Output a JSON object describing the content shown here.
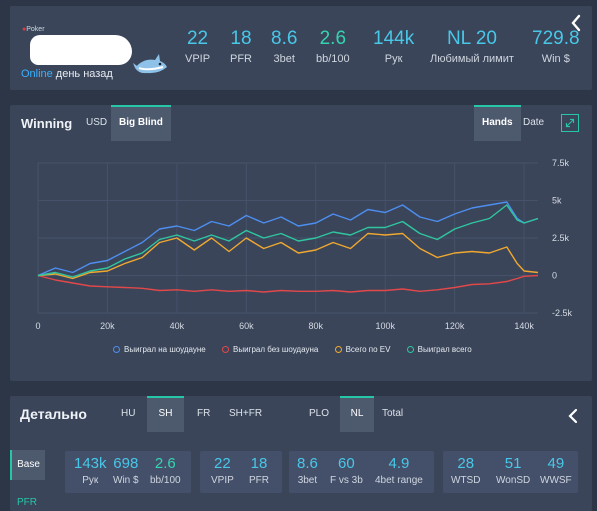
{
  "profile": {
    "logo_text": "Poker",
    "status_online": "Online",
    "status_ago": "день назад",
    "stats": [
      {
        "value": "22",
        "label": "VPIP"
      },
      {
        "value": "18",
        "label": "PFR"
      },
      {
        "value": "8.6",
        "label": "3bet"
      },
      {
        "value": "2.6",
        "label": "bb/100"
      },
      {
        "value": "144k",
        "label": "Рук"
      },
      {
        "value": "NL 20",
        "label": "Любимый лимит"
      },
      {
        "value": "729.8",
        "label": "Win $"
      }
    ]
  },
  "winning": {
    "title": "Winning",
    "tabs": [
      "USD",
      "Big Blind"
    ],
    "active_tab": "Big Blind",
    "modes": [
      "Hands",
      "Date"
    ],
    "active_mode": "Hands"
  },
  "chart_data": {
    "type": "line",
    "xlabel": "",
    "ylabel": "",
    "xlim": [
      0,
      144000
    ],
    "ylim": [
      -2500,
      7500
    ],
    "x_ticks": [
      "0",
      "20k",
      "40k",
      "60k",
      "80k",
      "100k",
      "120k",
      "140k"
    ],
    "y_ticks": [
      "7.5k",
      "5k",
      "2.5k",
      "0",
      "-2.5k"
    ],
    "grid": true,
    "legend_position": "bottom",
    "x": [
      0,
      5000,
      10000,
      15000,
      20000,
      25000,
      30000,
      35000,
      40000,
      45000,
      50000,
      55000,
      60000,
      65000,
      70000,
      75000,
      80000,
      85000,
      90000,
      95000,
      100000,
      105000,
      110000,
      115000,
      120000,
      125000,
      130000,
      135000,
      138000,
      140000,
      144000
    ],
    "series": [
      {
        "name": "Выиграл на шоудауне",
        "color": "#4d8ef0",
        "values": [
          0,
          500,
          200,
          800,
          1000,
          1600,
          2200,
          3100,
          3300,
          3000,
          3600,
          3300,
          4000,
          3500,
          3900,
          3300,
          3500,
          4100,
          3700,
          4400,
          4200,
          4700,
          3900,
          3600,
          4100,
          4500,
          4700,
          4900,
          3800,
          3500,
          3800
        ]
      },
      {
        "name": "Выиграл без шоудауна",
        "color": "#e2484a",
        "values": [
          0,
          -300,
          -500,
          -700,
          -750,
          -800,
          -850,
          -1000,
          -950,
          -1050,
          -950,
          -1050,
          -1000,
          -1100,
          -1000,
          -1050,
          -1050,
          -1000,
          -1100,
          -1000,
          -1000,
          -900,
          -1050,
          -950,
          -800,
          -600,
          -550,
          -400,
          -200,
          -50,
          0
        ]
      },
      {
        "name": "Всего по EV",
        "color": "#f0a830",
        "values": [
          0,
          100,
          -200,
          200,
          300,
          800,
          1200,
          2200,
          2500,
          1700,
          2500,
          1600,
          2500,
          1800,
          2200,
          1500,
          1700,
          2200,
          1800,
          2800,
          2700,
          2800,
          1800,
          1200,
          1500,
          1600,
          1500,
          1900,
          800,
          300,
          200
        ]
      },
      {
        "name": "Выиграл всего",
        "color": "#2fc6a0",
        "values": [
          0,
          200,
          -100,
          300,
          500,
          1100,
          1500,
          2400,
          2700,
          2300,
          2700,
          2300,
          3000,
          2500,
          2800,
          2300,
          2500,
          2900,
          2700,
          3200,
          3200,
          3600,
          2800,
          2400,
          3100,
          3500,
          3800,
          4700,
          3700,
          3500,
          3800
        ]
      }
    ]
  },
  "detail": {
    "title": "Детально",
    "tabs_a": [
      "HU",
      "SH",
      "FR",
      "SH+FR"
    ],
    "active_a": "SH",
    "tabs_b": [
      "PLO",
      "NL",
      "Total"
    ],
    "active_b": "NL",
    "base_label": "Base",
    "pfr_label": "PFR",
    "groups": [
      {
        "stats": [
          {
            "value": "143k",
            "label": "Рук"
          },
          {
            "value": "698",
            "label": "Win $"
          },
          {
            "value": "2.6",
            "label": "bb/100",
            "green": true
          }
        ]
      },
      {
        "stats": [
          {
            "value": "22",
            "label": "VPIP"
          },
          {
            "value": "18",
            "label": "PFR"
          }
        ]
      },
      {
        "stats": [
          {
            "value": "8.6",
            "label": "3bet"
          },
          {
            "value": "60",
            "label": "F vs 3b"
          },
          {
            "value": "4.9",
            "label": "4bet range"
          }
        ]
      },
      {
        "stats": [
          {
            "value": "28",
            "label": "WTSD"
          },
          {
            "value": "51",
            "label": "WonSD"
          },
          {
            "value": "49",
            "label": "WWSF"
          }
        ]
      }
    ]
  }
}
